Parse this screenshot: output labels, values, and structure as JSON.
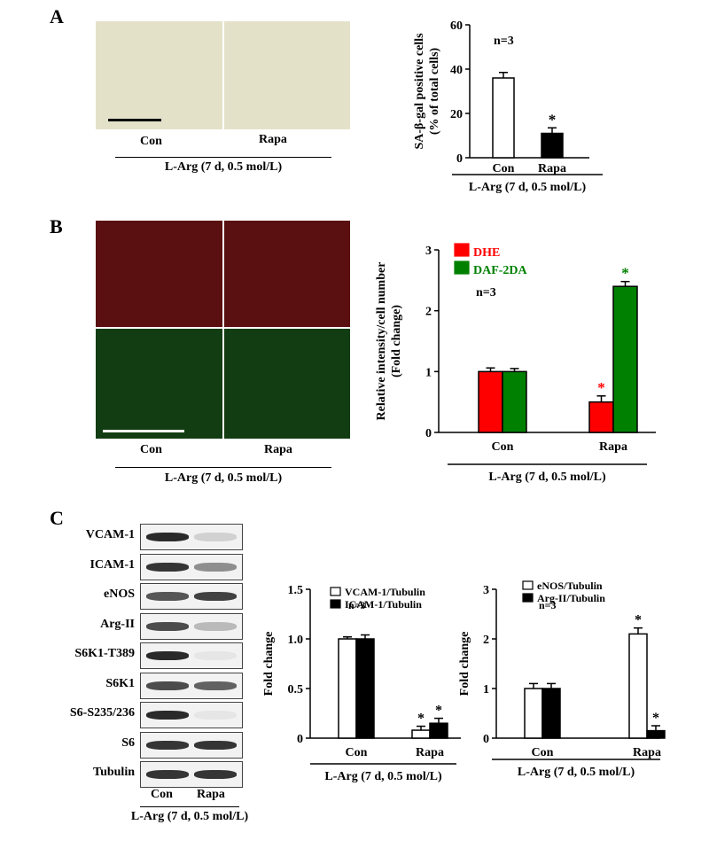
{
  "panels": {
    "A": {
      "letter": "A",
      "images": [
        "Con",
        "Rapa"
      ],
      "treatment": "L-Arg (7 d, 0.5 mol/L)"
    },
    "B": {
      "letter": "B",
      "images": [
        "Con",
        "Rapa"
      ],
      "treatment": "L-Arg (7 d, 0.5 mol/L)"
    },
    "C": {
      "letter": "C",
      "blot_labels": [
        "VCAM-1",
        "ICAM-1",
        "eNOS",
        "Arg-II",
        "S6K1-T389",
        "S6K1",
        "S6-S235/236",
        "S6",
        "Tubulin"
      ],
      "lanes": [
        "Con",
        "Rapa"
      ],
      "treatment": "L-Arg (7 d, 0.5 mol/L)"
    }
  },
  "colors": {
    "bright_field": "#e3e2c9",
    "dhe_stain": "#5a1010",
    "daf_stain": "#123d12",
    "dhe": "#ff0000",
    "daf": "#008000",
    "white": "#ffffff",
    "black": "#000000"
  },
  "chart_data": [
    {
      "id": "A",
      "type": "bar",
      "categories": [
        "Con",
        "Rapa"
      ],
      "series": [
        {
          "name": "",
          "values": [
            36,
            11
          ],
          "errors": [
            2.5,
            2.5
          ],
          "colors": [
            "#ffffff",
            "#000000"
          ]
        }
      ],
      "ylabel_lines": [
        "SA-β-gal positive cells",
        "(% of total cells)"
      ],
      "yticks": [
        0,
        20,
        40,
        60
      ],
      "ylim": [
        0,
        60
      ],
      "annotation": "n=3",
      "significance": [
        "",
        "*"
      ],
      "xlabel": "L-Arg (7 d, 0.5 mol/L)"
    },
    {
      "id": "B",
      "type": "bar",
      "categories": [
        "Con",
        "Rapa"
      ],
      "series": [
        {
          "name": "DHE",
          "values": [
            1.0,
            0.5
          ],
          "errors": [
            0.06,
            0.1
          ],
          "color": "#ff0000"
        },
        {
          "name": "DAF-2DA",
          "values": [
            1.0,
            2.4
          ],
          "errors": [
            0.05,
            0.08
          ],
          "color": "#008000"
        }
      ],
      "ylabel_lines": [
        "Relative intensity/cell number",
        "(Fold change)"
      ],
      "yticks": [
        0,
        1,
        2,
        3
      ],
      "ylim": [
        0,
        3
      ],
      "annotation": "n=3",
      "significance": [
        [
          "",
          "*"
        ],
        [
          "",
          "*"
        ]
      ],
      "xlabel": "L-Arg (7 d, 0.5 mol/L)"
    },
    {
      "id": "C1",
      "type": "bar",
      "categories": [
        "Con",
        "Rapa"
      ],
      "series": [
        {
          "name": "VCAM-1/Tubulin",
          "values": [
            1.0,
            0.08
          ],
          "errors": [
            0.02,
            0.04
          ],
          "color": "#ffffff"
        },
        {
          "name": "ICAM-1/Tubulin",
          "values": [
            1.0,
            0.15
          ],
          "errors": [
            0.04,
            0.05
          ],
          "color": "#000000"
        }
      ],
      "ylabel_lines": [
        "Fold change"
      ],
      "yticks": [
        0,
        0.5,
        1.0,
        1.5
      ],
      "ytick_labels": [
        "0",
        "0.5",
        "1.0",
        "1.5"
      ],
      "ylim": [
        0,
        1.5
      ],
      "annotation": "n=3",
      "significance": [
        [
          "",
          "*"
        ],
        [
          "",
          "*"
        ]
      ],
      "xlabel": "L-Arg (7 d, 0.5 mol/L)"
    },
    {
      "id": "C2",
      "type": "bar",
      "categories": [
        "Con",
        "Rapa"
      ],
      "series": [
        {
          "name": "eNOS/Tubulin",
          "values": [
            1.0,
            2.1
          ],
          "errors": [
            0.1,
            0.12
          ],
          "color": "#ffffff"
        },
        {
          "name": "Arg-II/Tubulin",
          "values": [
            1.0,
            0.15
          ],
          "errors": [
            0.1,
            0.1
          ],
          "color": "#000000"
        }
      ],
      "ylabel_lines": [
        "Fold change"
      ],
      "yticks": [
        0,
        1,
        2,
        3
      ],
      "ylim": [
        0,
        3
      ],
      "annotation": "n=3",
      "significance": [
        [
          "",
          "*"
        ],
        [
          "",
          "*"
        ]
      ],
      "xlabel": "L-Arg (7 d, 0.5 mol/L)"
    }
  ]
}
